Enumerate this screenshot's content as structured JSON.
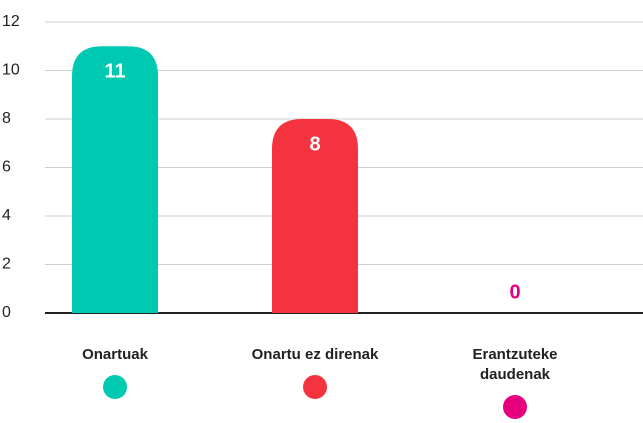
{
  "chart_data": {
    "type": "bar",
    "categories": [
      "Onartuak",
      "Onartu ez direnak",
      "Erantzuteke daudenak"
    ],
    "values": [
      11,
      8,
      0
    ],
    "colors": [
      "#00c9b1",
      "#f5333f",
      "#e6007e"
    ],
    "ylim": [
      0,
      12
    ],
    "yticks": [
      0,
      2,
      4,
      6,
      8,
      10,
      12
    ],
    "grid": true
  }
}
